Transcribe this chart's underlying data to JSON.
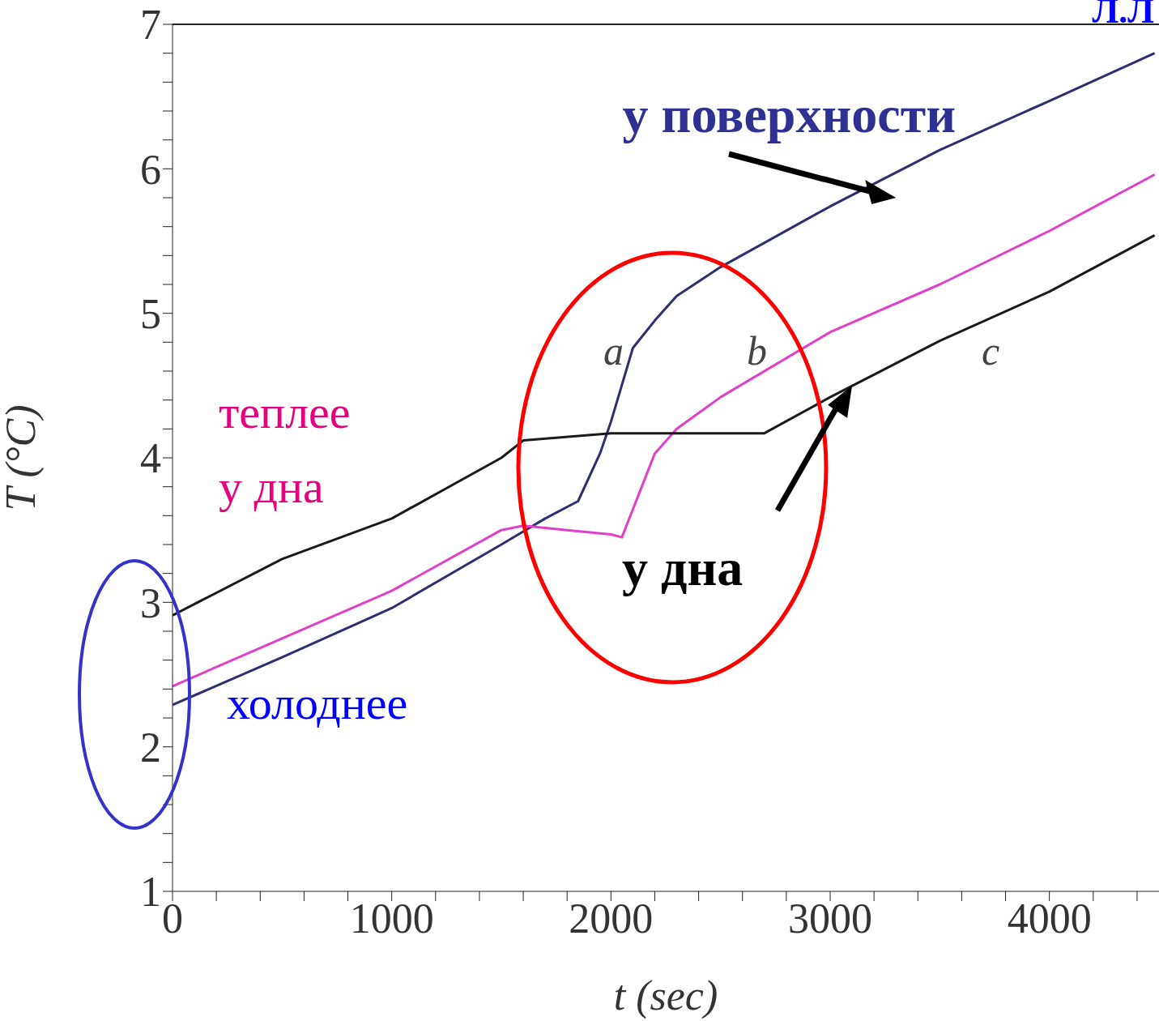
{
  "chart_data": {
    "type": "line",
    "xlabel": "t (sec)",
    "ylabel": "T (°C)",
    "xlim": [
      0,
      4500
    ],
    "ylim": [
      1,
      7
    ],
    "xticks": [
      0,
      {
        "value": 200,
        "label": null
      },
      {
        "value": 400,
        "label": null
      },
      {
        "value": 600,
        "label": null
      },
      {
        "value": 800,
        "label": null
      },
      1000,
      {
        "value": 1200,
        "label": null
      },
      {
        "value": 1400,
        "label": null
      },
      {
        "value": 1600,
        "label": null
      },
      {
        "value": 1800,
        "label": null
      },
      2000,
      {
        "value": 2200,
        "label": null
      },
      {
        "value": 2400,
        "label": null
      },
      {
        "value": 2600,
        "label": null
      },
      {
        "value": 2800,
        "label": null
      },
      3000,
      {
        "value": 3200,
        "label": null
      },
      {
        "value": 3400,
        "label": null
      },
      {
        "value": 3600,
        "label": null
      },
      {
        "value": 3800,
        "label": null
      },
      4000,
      {
        "value": 4200,
        "label": null
      },
      {
        "value": 4400,
        "label": null
      }
    ],
    "yticks": [
      1,
      {
        "value": 1.2,
        "label": null
      },
      {
        "value": 1.4,
        "label": null
      },
      {
        "value": 1.6,
        "label": null
      },
      {
        "value": 1.8,
        "label": null
      },
      2,
      {
        "value": 2.2,
        "label": null
      },
      {
        "value": 2.4,
        "label": null
      },
      {
        "value": 2.6,
        "label": null
      },
      {
        "value": 2.8,
        "label": null
      },
      3,
      {
        "value": 3.2,
        "label": null
      },
      {
        "value": 3.4,
        "label": null
      },
      {
        "value": 3.6,
        "label": null
      },
      {
        "value": 3.8,
        "label": null
      },
      4,
      {
        "value": 4.2,
        "label": null
      },
      {
        "value": 4.4,
        "label": null
      },
      {
        "value": 4.6,
        "label": null
      },
      {
        "value": 4.8,
        "label": null
      },
      5,
      {
        "value": 5.2,
        "label": null
      },
      {
        "value": 5.4,
        "label": null
      },
      {
        "value": 5.6,
        "label": null
      },
      {
        "value": 5.8,
        "label": null
      },
      6,
      {
        "value": 6.2,
        "label": null
      },
      {
        "value": 6.4,
        "label": null
      },
      {
        "value": 6.6,
        "label": null
      },
      {
        "value": 6.8,
        "label": null
      },
      7
    ],
    "marker": "none",
    "line_style": "solid",
    "series": [
      {
        "name": "a",
        "color": "#2e2f6e",
        "x": [
          0,
          500,
          1000,
          1500,
          1700,
          1850,
          1950,
          2000,
          2100,
          2200,
          2300,
          2500,
          3000,
          3500,
          4000,
          4480
        ],
        "values": [
          2.29,
          2.62,
          2.96,
          3.4,
          3.58,
          3.7,
          4.03,
          4.25,
          4.76,
          4.95,
          5.12,
          5.32,
          5.74,
          6.13,
          6.47,
          6.8
        ]
      },
      {
        "name": "b",
        "color": "#e040c8",
        "x": [
          0,
          500,
          1000,
          1500,
          1600,
          1800,
          2000,
          2050,
          2200,
          2300,
          2500,
          3000,
          3500,
          4000,
          4480
        ],
        "values": [
          2.42,
          2.75,
          3.08,
          3.5,
          3.53,
          3.5,
          3.47,
          3.45,
          4.03,
          4.2,
          4.42,
          4.87,
          5.2,
          5.57,
          5.96
        ]
      },
      {
        "name": "c",
        "color": "#1a1a1a",
        "x": [
          0,
          500,
          1000,
          1500,
          1600,
          2000,
          2400,
          2700,
          3000,
          3500,
          4000,
          4480
        ],
        "values": [
          2.91,
          3.3,
          3.58,
          4.0,
          4.12,
          4.17,
          4.17,
          4.17,
          4.42,
          4.81,
          5.15,
          5.54
        ]
      }
    ],
    "annotations": [
      "у поверхности",
      "теплее у дна",
      "холоднее",
      "у дна",
      "Л.Л"
    ]
  }
}
